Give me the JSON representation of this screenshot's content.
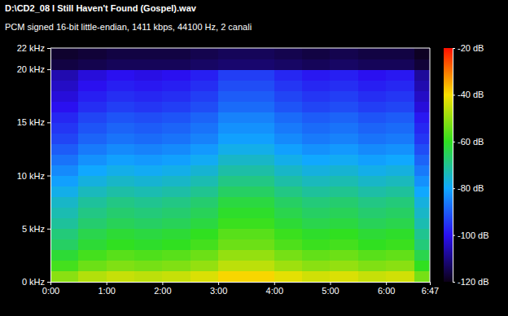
{
  "chart_data": {
    "type": "heatmap",
    "title": "D:\\CD2_08 I Still Haven't Found (Gospel).wav",
    "subtitle": "PCM signed 16-bit little-endian, 1411 kbps, 44100 Hz, 2 canali",
    "x_edges": [
      0,
      30,
      60,
      90,
      120,
      150,
      180,
      210,
      240,
      270,
      300,
      330,
      360,
      390,
      407
    ],
    "y_edges": [
      0,
      1,
      2,
      3,
      4,
      5,
      6,
      7,
      8,
      9,
      10,
      11,
      12,
      13,
      14,
      15,
      16,
      17,
      18,
      19,
      20,
      21,
      22
    ],
    "cells": [
      [
        -51,
        -47,
        -45,
        -46,
        -45,
        -43,
        -39,
        -39,
        -42,
        -44,
        -43,
        -45,
        -44,
        -53
      ],
      [
        -58,
        -54,
        -52,
        -53,
        -52,
        -50,
        -46,
        -46,
        -49,
        -51,
        -50,
        -52,
        -51,
        -60
      ],
      [
        -62,
        -58,
        -56,
        -57,
        -56,
        -54,
        -50,
        -50,
        -53,
        -55,
        -54,
        -56,
        -55,
        -64
      ],
      [
        -66,
        -62,
        -60,
        -61,
        -60,
        -58,
        -54,
        -54,
        -57,
        -59,
        -58,
        -60,
        -59,
        -68
      ],
      [
        -68,
        -64,
        -62,
        -63,
        -62,
        -60,
        -56,
        -56,
        -59,
        -61,
        -60,
        -62,
        -61,
        -70
      ],
      [
        -71,
        -67,
        -65,
        -66,
        -65,
        -63,
        -59,
        -59,
        -62,
        -64,
        -63,
        -65,
        -64,
        -73
      ],
      [
        -73,
        -69,
        -67,
        -68,
        -67,
        -65,
        -61,
        -61,
        -64,
        -66,
        -65,
        -67,
        -66,
        -75
      ],
      [
        -75,
        -71,
        -69,
        -70,
        -69,
        -67,
        -63,
        -63,
        -66,
        -68,
        -67,
        -69,
        -68,
        -77
      ],
      [
        -78,
        -74,
        -72,
        -73,
        -72,
        -70,
        -66,
        -66,
        -69,
        -71,
        -70,
        -72,
        -71,
        -80
      ],
      [
        -81,
        -77,
        -75,
        -76,
        -75,
        -73,
        -69,
        -69,
        -72,
        -74,
        -73,
        -75,
        -74,
        -83
      ],
      [
        -84,
        -80,
        -78,
        -79,
        -78,
        -76,
        -72,
        -72,
        -75,
        -77,
        -76,
        -78,
        -77,
        -86
      ],
      [
        -87,
        -83,
        -81,
        -82,
        -81,
        -79,
        -75,
        -75,
        -78,
        -80,
        -79,
        -81,
        -80,
        -89
      ],
      [
        -90,
        -86,
        -84,
        -85,
        -84,
        -82,
        -78,
        -78,
        -81,
        -83,
        -82,
        -84,
        -83,
        -92
      ],
      [
        -93,
        -89,
        -87,
        -88,
        -87,
        -85,
        -81,
        -81,
        -84,
        -86,
        -85,
        -87,
        -86,
        -95
      ],
      [
        -95,
        -91,
        -89,
        -90,
        -89,
        -87,
        -83,
        -83,
        -86,
        -88,
        -87,
        -89,
        -88,
        -97
      ],
      [
        -97,
        -93,
        -91,
        -92,
        -91,
        -89,
        -85,
        -85,
        -88,
        -90,
        -89,
        -91,
        -90,
        -99
      ],
      [
        -100,
        -96,
        -94,
        -95,
        -94,
        -92,
        -88,
        -88,
        -91,
        -93,
        -92,
        -94,
        -93,
        -102
      ],
      [
        -102,
        -98,
        -96,
        -97,
        -96,
        -94,
        -90,
        -90,
        -93,
        -95,
        -94,
        -96,
        -95,
        -104
      ],
      [
        -104,
        -100,
        -98,
        -99,
        -98,
        -96,
        -92,
        -92,
        -95,
        -97,
        -96,
        -98,
        -97,
        -106
      ],
      [
        -106,
        -102,
        -100,
        -101,
        -100,
        -98,
        -94,
        -94,
        -97,
        -99,
        -98,
        -100,
        -99,
        -108
      ],
      [
        -116,
        -115,
        -114,
        -114,
        -114,
        -113,
        -112,
        -112,
        -113,
        -114,
        -113,
        -114,
        -114,
        -117
      ],
      [
        -118,
        -117,
        -116,
        -116,
        -116,
        -115,
        -114,
        -114,
        -115,
        -116,
        -115,
        -116,
        -116,
        -119
      ]
    ],
    "xlim": [
      0,
      407
    ],
    "ylim": [
      0,
      22
    ],
    "xticks": [
      {
        "value": 0,
        "label": "0:00"
      },
      {
        "value": 60,
        "label": "1:00"
      },
      {
        "value": 120,
        "label": "2:00"
      },
      {
        "value": 180,
        "label": "3:00"
      },
      {
        "value": 240,
        "label": "4:00"
      },
      {
        "value": 300,
        "label": "5:00"
      },
      {
        "value": 360,
        "label": "6:00"
      },
      {
        "value": 407,
        "label": "6:47"
      }
    ],
    "yticks": [
      {
        "value": 0,
        "label": "0 kHz"
      },
      {
        "value": 5,
        "label": "5 kHz"
      },
      {
        "value": 10,
        "label": "10 kHz"
      },
      {
        "value": 15,
        "label": "15 kHz"
      },
      {
        "value": 20,
        "label": "20 kHz"
      },
      {
        "value": 22,
        "label": "22 kHz"
      }
    ],
    "colorbar": {
      "range": [
        -120,
        -20
      ],
      "ticks": [
        {
          "value": -20,
          "label": "-20 dB"
        },
        {
          "value": -40,
          "label": "-40 dB"
        },
        {
          "value": -60,
          "label": "-60 dB"
        },
        {
          "value": -80,
          "label": "-80 dB"
        },
        {
          "value": -100,
          "label": "-100 dB"
        },
        {
          "value": -120,
          "label": "-120 dB"
        }
      ],
      "colors": [
        "#0c0018",
        "#2a10f0",
        "#10a8ff",
        "#30e020",
        "#f8e000",
        "#ff1000"
      ]
    }
  }
}
